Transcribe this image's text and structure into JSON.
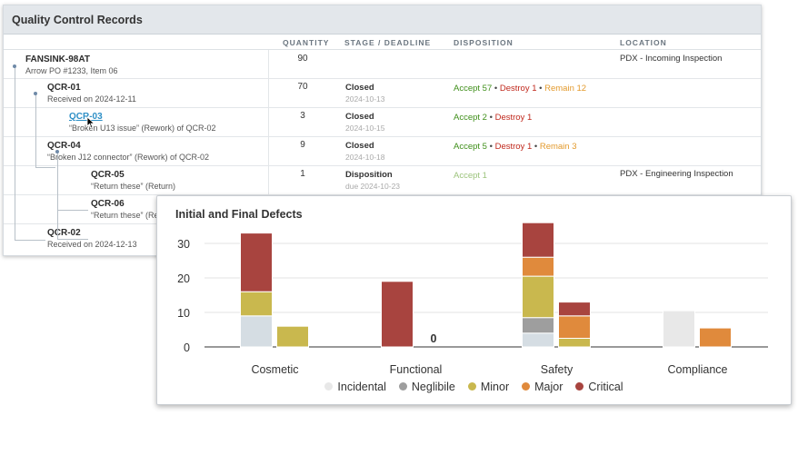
{
  "records": {
    "title": "Quality Control Records",
    "columns": {
      "quantity": "QUANTITY",
      "stage": "STAGE / DEADLINE",
      "disposition": "DISPOSITION",
      "location": "LOCATION"
    },
    "rows": [
      {
        "title": "FANSINK-98AT",
        "sub": "Arrow PO #1233, Item 06",
        "qty": "90",
        "stage": "",
        "deadline": "",
        "disp": [],
        "location": "PDX - Incoming Inspection",
        "link": false
      },
      {
        "title": "QCR-01",
        "sub": "Received on 2024-12-11",
        "qty": "70",
        "stage": "Closed",
        "deadline": "2024-10-13",
        "disp": [
          {
            "text": "Accept 57",
            "color": "g"
          },
          {
            "text": "Destroy 1",
            "color": "r"
          },
          {
            "text": "Remain 12",
            "color": "o"
          }
        ],
        "location": "",
        "link": false
      },
      {
        "title": "QCR-03",
        "sub": "“Broken U13 issue” (Rework) of QCR-02",
        "qty": "3",
        "stage": "Closed",
        "deadline": "2024-10-15",
        "disp": [
          {
            "text": "Accept 2",
            "color": "g"
          },
          {
            "text": "Destroy 1",
            "color": "r"
          }
        ],
        "location": "",
        "link": true
      },
      {
        "title": "QCR-04",
        "sub": "“Broken J12 connector” (Rework) of QCR-02",
        "qty": "9",
        "stage": "Closed",
        "deadline": "2024-10-18",
        "disp": [
          {
            "text": "Accept 5",
            "color": "g"
          },
          {
            "text": "Destroy 1",
            "color": "r"
          },
          {
            "text": "Remain 3",
            "color": "o"
          }
        ],
        "location": "",
        "link": false
      },
      {
        "title": "QCR-05",
        "sub": "“Return these” (Return)",
        "qty": "1",
        "stage": "Disposition",
        "deadline": "due 2024-10-23",
        "disp": [
          {
            "text": "Accept 1",
            "color": "lg"
          }
        ],
        "location": "PDX - Engineering Inspection",
        "link": false
      },
      {
        "title": "QCR-06",
        "sub": "“Return these” (Re",
        "qty": "",
        "stage": "",
        "deadline": "",
        "disp": [],
        "location": "",
        "link": false
      },
      {
        "title": "QCR-02",
        "sub": "Received on 2024-12-13",
        "qty": "",
        "stage": "",
        "deadline": "",
        "disp": [],
        "location": "",
        "link": false
      }
    ]
  },
  "chart": {
    "title": "Initial and Final Defects",
    "colors": {
      "Incidental": "#e8e8e8",
      "Neglibile": "#9e9e9e",
      "Minor": "#c9b84e",
      "Major": "#e08a3c",
      "Critical": "#a8443f",
      "Incidental_initial": "#d5dde3"
    },
    "legend": [
      "Incidental",
      "Neglibile",
      "Minor",
      "Major",
      "Critical"
    ],
    "zero_label": "0"
  },
  "chart_data": {
    "type": "bar",
    "title": "Initial and Final Defects",
    "categories": [
      "Cosmetic",
      "Functional",
      "Safety",
      "Compliance"
    ],
    "ylim": [
      0,
      35
    ],
    "yticks": [
      0,
      10,
      20,
      30
    ],
    "stack_order": [
      "Incidental",
      "Neglibile",
      "Minor",
      "Major",
      "Critical"
    ],
    "groups": [
      {
        "category": "Cosmetic",
        "initial": {
          "Incidental": 9,
          "Neglibile": 0,
          "Minor": 7,
          "Major": 0,
          "Critical": 17
        },
        "final": {
          "Incidental": 0,
          "Neglibile": 0,
          "Minor": 6,
          "Major": 0,
          "Critical": 0
        }
      },
      {
        "category": "Functional",
        "initial": {
          "Incidental": 0,
          "Neglibile": 0,
          "Minor": 0,
          "Major": 0,
          "Critical": 19
        },
        "final": {
          "Incidental": 0,
          "Neglibile": 0,
          "Minor": 0,
          "Major": 0,
          "Critical": 0
        }
      },
      {
        "category": "Safety",
        "initial": {
          "Incidental": 4,
          "Neglibile": 4.5,
          "Minor": 12,
          "Major": 5.5,
          "Critical": 10
        },
        "final": {
          "Incidental": 0,
          "Neglibile": 0,
          "Minor": 2.5,
          "Major": 6.5,
          "Critical": 4
        }
      },
      {
        "category": "Compliance",
        "initial": {
          "Incidental": 10.5,
          "Neglibile": 0,
          "Minor": 0,
          "Major": 0,
          "Critical": 0
        },
        "final": {
          "Incidental": 0,
          "Neglibile": 0,
          "Minor": 0,
          "Major": 5.5,
          "Critical": 0
        }
      }
    ]
  }
}
